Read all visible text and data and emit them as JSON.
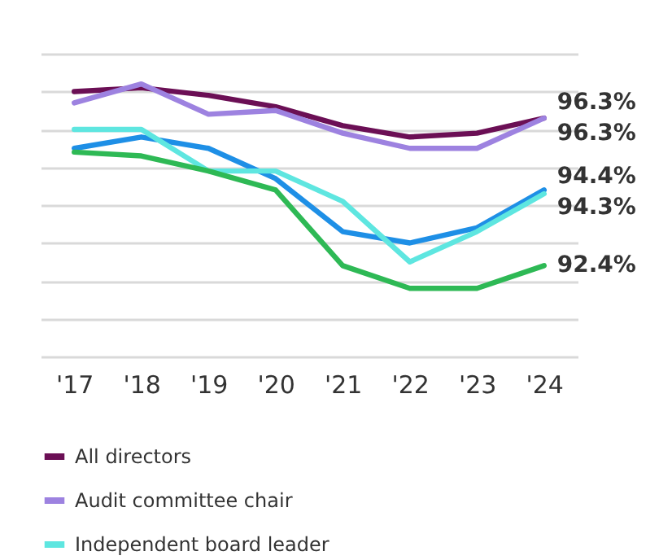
{
  "chart_data": {
    "type": "line",
    "categories": [
      "'17",
      "'18",
      "'19",
      "'20",
      "'21",
      "'22",
      "'23",
      "'24"
    ],
    "series": [
      {
        "name": "All directors",
        "color": "#6b0f55",
        "values": [
          97.0,
          97.1,
          96.9,
          96.6,
          96.1,
          95.8,
          95.9,
          96.3
        ],
        "value_labels": [
          null,
          null,
          null,
          null,
          null,
          null,
          null,
          "96.3%"
        ]
      },
      {
        "name": "Audit committee chair",
        "color": "#9d82e0",
        "values": [
          96.7,
          97.2,
          96.4,
          96.5,
          95.9,
          95.5,
          95.5,
          96.3
        ],
        "value_labels": [
          null,
          null,
          null,
          null,
          null,
          null,
          null,
          "96.3%"
        ]
      },
      {
        "color": "#1e8fe6",
        "values": [
          95.5,
          95.8,
          95.5,
          94.7,
          93.3,
          93.0,
          93.4,
          94.4
        ],
        "value_labels": [
          null,
          null,
          null,
          null,
          null,
          null,
          null,
          "94.4%"
        ]
      },
      {
        "name": "Independent board leader",
        "color": "#5ee6e0",
        "values": [
          96.0,
          96.0,
          94.9,
          94.9,
          94.1,
          92.5,
          93.3,
          94.3
        ],
        "value_labels": [
          null,
          null,
          null,
          null,
          null,
          null,
          null,
          "94.3%"
        ]
      },
      {
        "color": "#2eb955",
        "values": [
          95.4,
          95.3,
          94.9,
          94.4,
          92.4,
          91.8,
          91.8,
          92.4
        ],
        "value_labels": [
          null,
          null,
          null,
          null,
          null,
          null,
          null,
          "92.4%"
        ]
      }
    ],
    "relative": false,
    "ylim": [
      90,
      98
    ],
    "yticks": [
      {
        "value": 90,
        "label": null
      },
      {
        "value": 91,
        "label": null
      },
      {
        "value": 92,
        "label": null
      },
      {
        "value": 93,
        "label": null
      },
      {
        "value": 94,
        "label": null
      },
      {
        "value": 95,
        "label": null
      },
      {
        "value": 96,
        "label": null
      },
      {
        "value": 97,
        "label": null
      },
      {
        "value": 98,
        "label": null
      }
    ],
    "grid": "y",
    "legend": "bottom left",
    "tick_labels": "x",
    "marker": "none",
    "line_style": "solid"
  }
}
